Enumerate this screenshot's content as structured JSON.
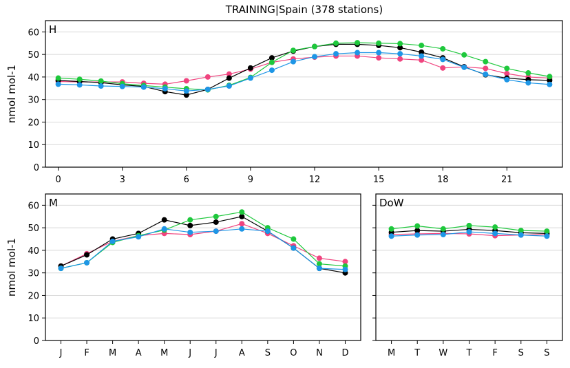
{
  "figure": {
    "title": "TRAINING|Spain (378 stations)"
  },
  "series_colors": {
    "black": "#000000",
    "pink": "#f0447f",
    "green": "#1ec83c",
    "blue": "#1e96e6"
  },
  "chart_data": [
    {
      "type": "line",
      "panel_label": "H",
      "ylabel": "nmol mol-1",
      "ylim": [
        0,
        65
      ],
      "yticks": [
        0,
        10,
        20,
        30,
        40,
        50,
        60
      ],
      "xlim": [
        -0.6,
        23.6
      ],
      "x": [
        0,
        1,
        2,
        3,
        4,
        5,
        6,
        7,
        8,
        9,
        10,
        11,
        12,
        13,
        14,
        15,
        16,
        17,
        18,
        19,
        20,
        21,
        22,
        23
      ],
      "xticks": [
        0,
        3,
        6,
        9,
        12,
        15,
        18,
        21
      ],
      "xtick_labels": [
        "0",
        "3",
        "6",
        "9",
        "12",
        "15",
        "18",
        "21"
      ],
      "grid": "horizontal",
      "series": [
        {
          "color_key": "pink",
          "values": [
            38.0,
            37.8,
            37.8,
            37.8,
            37.2,
            36.8,
            38.3,
            40.0,
            41.3,
            43.5,
            46.5,
            48.0,
            48.8,
            49.3,
            49.3,
            48.5,
            48.0,
            47.5,
            44.0,
            44.5,
            43.8,
            41.5,
            40.0,
            39.5
          ]
        },
        {
          "color_key": "black",
          "values": [
            38.5,
            38.0,
            37.5,
            36.5,
            35.8,
            33.5,
            32.0,
            34.5,
            39.5,
            44.0,
            48.5,
            51.5,
            53.5,
            54.5,
            54.5,
            54.0,
            53.0,
            51.0,
            48.5,
            44.5,
            41.0,
            39.5,
            38.8,
            38.5
          ]
        },
        {
          "color_key": "green",
          "values": [
            39.5,
            39.0,
            38.2,
            37.0,
            36.2,
            35.5,
            34.8,
            34.3,
            36.3,
            39.8,
            46.5,
            51.8,
            53.5,
            55.0,
            55.2,
            55.0,
            54.8,
            54.0,
            52.5,
            49.8,
            46.8,
            43.8,
            41.8,
            40.2
          ]
        },
        {
          "color_key": "blue",
          "values": [
            36.8,
            36.5,
            36.0,
            35.8,
            35.5,
            34.8,
            33.8,
            34.5,
            36.0,
            39.5,
            43.0,
            46.8,
            49.0,
            50.3,
            50.8,
            50.8,
            50.3,
            49.3,
            47.8,
            44.3,
            41.2,
            38.8,
            37.4,
            36.7
          ]
        }
      ]
    },
    {
      "type": "line",
      "panel_label": "M",
      "ylabel": "nmol mol-1",
      "ylim": [
        0,
        65
      ],
      "yticks": [
        0,
        10,
        20,
        30,
        40,
        50,
        60
      ],
      "xlim": [
        -0.6,
        11.6
      ],
      "categories": [
        "J",
        "F",
        "M",
        "A",
        "M",
        "J",
        "J",
        "A",
        "S",
        "O",
        "N",
        "D"
      ],
      "grid": "horizontal",
      "series": [
        {
          "color_key": "pink",
          "values": [
            33.0,
            38.5,
            44.0,
            46.5,
            47.5,
            47.0,
            48.5,
            51.8,
            47.5,
            42.0,
            36.5,
            35.0
          ]
        },
        {
          "color_key": "black",
          "values": [
            33.0,
            38.0,
            45.0,
            47.5,
            53.5,
            51.0,
            52.5,
            55.0,
            48.5,
            41.0,
            32.0,
            30.0
          ]
        },
        {
          "color_key": "green",
          "values": [
            32.0,
            34.5,
            43.5,
            46.5,
            49.0,
            53.5,
            55.0,
            57.0,
            50.0,
            45.0,
            34.0,
            33.0
          ]
        },
        {
          "color_key": "blue",
          "values": [
            32.0,
            34.5,
            44.0,
            46.0,
            49.5,
            48.0,
            48.5,
            49.5,
            48.5,
            41.0,
            32.0,
            31.5
          ]
        }
      ]
    },
    {
      "type": "line",
      "panel_label": "DoW",
      "ylabel": "",
      "ylim": [
        0,
        65
      ],
      "yticks": [
        0,
        10,
        20,
        30,
        40,
        50,
        60
      ],
      "xlim": [
        -0.6,
        6.6
      ],
      "categories": [
        "M",
        "T",
        "W",
        "T",
        "F",
        "S",
        "S"
      ],
      "grid": "horizontal",
      "series": [
        {
          "color_key": "pink",
          "values": [
            47.0,
            47.3,
            47.5,
            47.3,
            46.5,
            46.8,
            47.0
          ]
        },
        {
          "color_key": "black",
          "values": [
            48.0,
            48.8,
            48.5,
            49.3,
            48.8,
            47.8,
            47.5
          ]
        },
        {
          "color_key": "green",
          "values": [
            49.5,
            50.8,
            49.5,
            51.0,
            50.3,
            48.8,
            48.5
          ]
        },
        {
          "color_key": "blue",
          "values": [
            46.3,
            46.8,
            47.0,
            48.2,
            47.5,
            46.8,
            46.3
          ]
        }
      ]
    }
  ]
}
